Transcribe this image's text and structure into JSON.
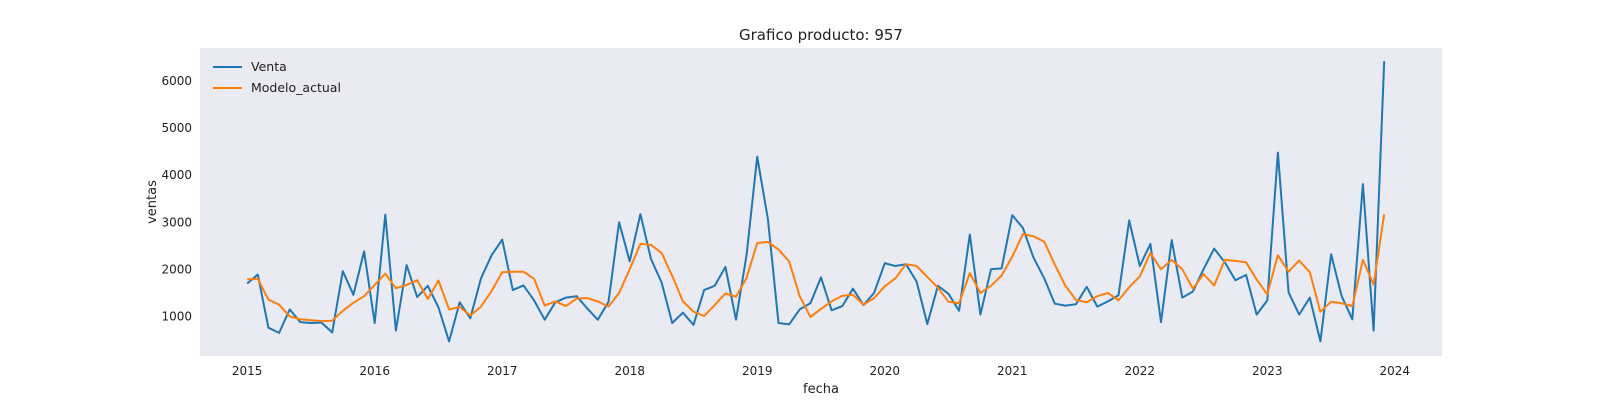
{
  "chart_data": {
    "type": "line",
    "title": "Grafico producto: 957",
    "xlabel": "fecha",
    "ylabel": "ventas",
    "xlim": [
      2014.63,
      2024.37
    ],
    "ylim": [
      160,
      6700
    ],
    "xticks": [
      2015,
      2016,
      2017,
      2018,
      2019,
      2020,
      2021,
      2022,
      2023,
      2024
    ],
    "yticks": [
      1000,
      2000,
      3000,
      4000,
      5000,
      6000
    ],
    "grid": false,
    "legend": "top-left",
    "background": "#eaeaf2",
    "series": [
      {
        "name": "Venta",
        "color": "#1f77b4",
        "start": "2015-01",
        "values": [
          1700,
          1890,
          760,
          650,
          1150,
          880,
          860,
          870,
          660,
          1960,
          1460,
          2380,
          860,
          3160,
          700,
          2090,
          1410,
          1650,
          1190,
          470,
          1300,
          960,
          1810,
          2300,
          2630,
          1560,
          1660,
          1340,
          930,
          1300,
          1400,
          1430,
          1170,
          930,
          1310,
          3000,
          2170,
          3170,
          2220,
          1720,
          860,
          1080,
          820,
          1560,
          1650,
          2050,
          930,
          2310,
          4390,
          3070,
          860,
          830,
          1150,
          1280,
          1830,
          1130,
          1220,
          1590,
          1240,
          1500,
          2130,
          2070,
          2110,
          1740,
          840,
          1650,
          1480,
          1120,
          2740,
          1040,
          2000,
          2020,
          3150,
          2880,
          2250,
          1810,
          1270,
          1230,
          1260,
          1630,
          1210,
          1320,
          1450,
          3040,
          2070,
          2540,
          880,
          2620,
          1400,
          1530,
          2000,
          2440,
          2150,
          1770,
          1880,
          1040,
          1340,
          4480,
          1510,
          1040,
          1400,
          470,
          2320,
          1430,
          940,
          3810,
          700,
          6420
        ]
      },
      {
        "name": "Modelo_actual",
        "color": "#ff7f0e",
        "start": "2015-01",
        "values": [
          1790,
          1800,
          1360,
          1250,
          1000,
          940,
          920,
          900,
          910,
          1120,
          1290,
          1430,
          1670,
          1910,
          1600,
          1670,
          1770,
          1370,
          1760,
          1150,
          1200,
          1020,
          1210,
          1540,
          1940,
          1950,
          1950,
          1800,
          1230,
          1320,
          1220,
          1380,
          1390,
          1320,
          1210,
          1500,
          2000,
          2540,
          2520,
          2350,
          1860,
          1320,
          1100,
          1010,
          1240,
          1490,
          1420,
          1820,
          2560,
          2580,
          2420,
          2170,
          1430,
          990,
          1160,
          1320,
          1440,
          1460,
          1250,
          1390,
          1640,
          1810,
          2110,
          2070,
          1840,
          1610,
          1310,
          1280,
          1920,
          1500,
          1650,
          1870,
          2270,
          2750,
          2700,
          2590,
          2100,
          1650,
          1350,
          1300,
          1430,
          1500,
          1340,
          1620,
          1850,
          2350,
          2000,
          2200,
          2000,
          1590,
          1900,
          1660,
          2200,
          2180,
          2150,
          1780,
          1470,
          2300,
          1950,
          2190,
          1940,
          1100,
          1310,
          1280,
          1220,
          2200,
          1680,
          3170
        ]
      }
    ]
  }
}
